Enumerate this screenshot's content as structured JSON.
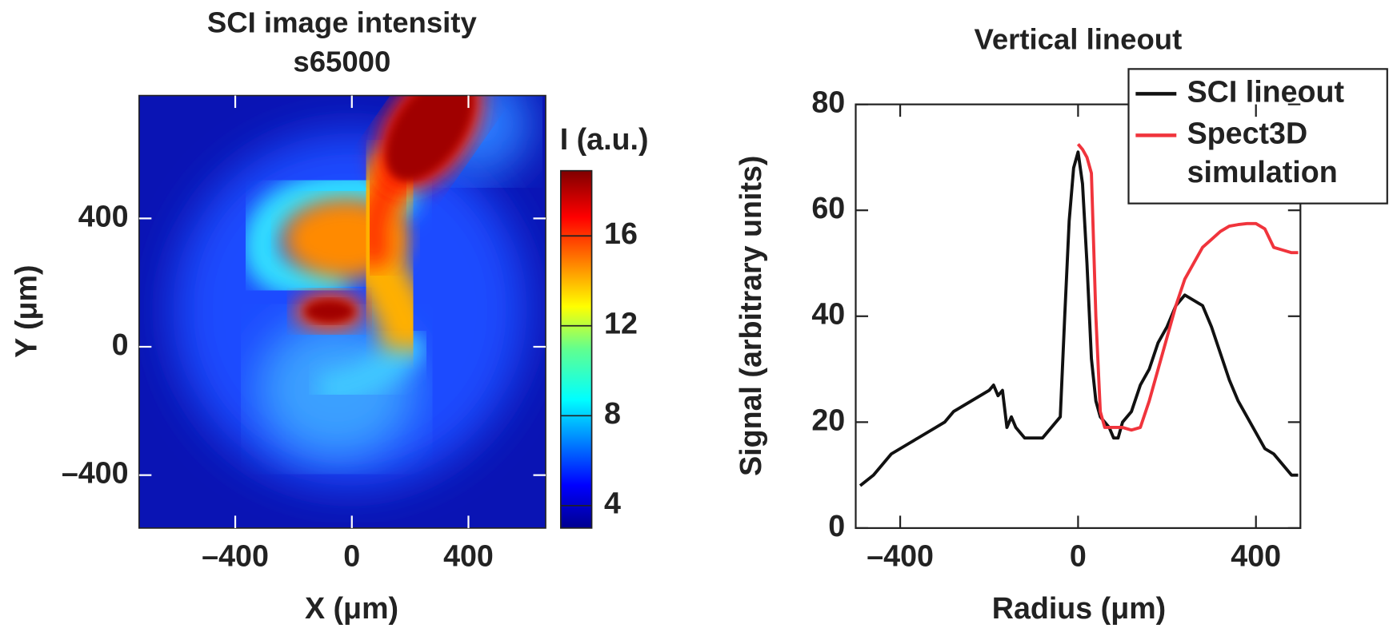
{
  "chart_data": [
    {
      "type": "heatmap",
      "title": [
        "SCI image intensity",
        "s65000"
      ],
      "xlabel": "X (μm)",
      "ylabel": "Y (μm)",
      "colorbar_label": "I (a.u.)",
      "xlim": [
        -730,
        665
      ],
      "ylim": [
        -565,
        783
      ],
      "xticks": [
        {
          "value": -400,
          "label": "–400"
        },
        0,
        400
      ],
      "yticks": [
        {
          "value": -400,
          "label": "–400"
        },
        0,
        400
      ],
      "clim": [
        3,
        18.9
      ],
      "cticks": [
        4,
        8,
        12,
        16
      ],
      "colormap": "jet"
    },
    {
      "type": "line",
      "title": "Vertical lineout",
      "xlabel": "Radius (μm)",
      "ylabel": "Signal (arbitrary units)",
      "xlim": [
        -500,
        500
      ],
      "ylim": [
        0,
        80
      ],
      "xticks": [
        {
          "value": -400,
          "label": "–400"
        },
        0,
        400
      ],
      "yticks": [
        0,
        20,
        40,
        60,
        80
      ],
      "legend": "upper right",
      "series": [
        {
          "name": "SCI lineout",
          "color": "#111111",
          "x": [
            -490,
            -460,
            -440,
            -420,
            -400,
            -380,
            -360,
            -340,
            -320,
            -300,
            -280,
            -260,
            -240,
            -220,
            -200,
            -190,
            -180,
            -170,
            -160,
            -150,
            -140,
            -120,
            -100,
            -80,
            -60,
            -40,
            -30,
            -20,
            -10,
            0,
            10,
            20,
            30,
            40,
            50,
            60,
            70,
            80,
            90,
            100,
            120,
            140,
            160,
            180,
            200,
            220,
            240,
            260,
            280,
            300,
            320,
            340,
            360,
            380,
            400,
            420,
            440,
            460,
            480,
            495
          ],
          "values": [
            8,
            10,
            12,
            14,
            15,
            16,
            17,
            18,
            19,
            20,
            22,
            23,
            24,
            25,
            26,
            27,
            25,
            26,
            19,
            21,
            19,
            17,
            17,
            17,
            19,
            21,
            40,
            58,
            68,
            71,
            65,
            50,
            32,
            24,
            21,
            20,
            19,
            17,
            17,
            20,
            22,
            27,
            30,
            35,
            38,
            42,
            44,
            43,
            42,
            38,
            33,
            28,
            24,
            21,
            18,
            15,
            14,
            12,
            10,
            10
          ]
        },
        {
          "name": "Spect3D simulation",
          "color": "#f0343c",
          "x": [
            0,
            10,
            20,
            30,
            40,
            50,
            60,
            80,
            100,
            120,
            140,
            160,
            180,
            200,
            220,
            240,
            260,
            280,
            300,
            320,
            340,
            360,
            380,
            400,
            420,
            440,
            460,
            480,
            495
          ],
          "values": [
            72.5,
            71.5,
            70,
            67,
            40,
            22,
            19,
            19,
            19,
            18.5,
            19,
            24,
            30,
            36,
            42,
            47,
            50,
            53,
            54.5,
            56,
            57,
            57.3,
            57.5,
            57.5,
            56.5,
            53,
            52.5,
            52,
            52
          ]
        }
      ]
    }
  ]
}
